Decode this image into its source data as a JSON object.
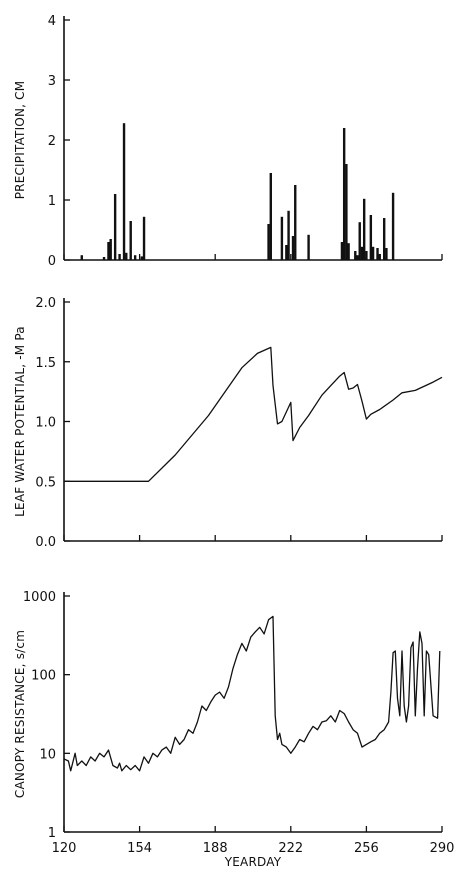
{
  "chart_data": [
    {
      "type": "bar",
      "ylabel": "PRECIPITATION, CM",
      "xlim": [
        120,
        290
      ],
      "ylim": [
        0,
        4
      ],
      "yticks": [
        0,
        1,
        2,
        3,
        4
      ],
      "ytick_labels": [
        "0",
        "1",
        "2",
        "3",
        "4"
      ],
      "xticks": [
        120,
        154,
        188,
        222,
        256,
        290
      ],
      "grid": false,
      "x": [
        128,
        138,
        140,
        141,
        143,
        145,
        147,
        148,
        150,
        152,
        155,
        156,
        212,
        213,
        218,
        220,
        221,
        223,
        224,
        230,
        245,
        246,
        247,
        248,
        251,
        252,
        253,
        254,
        255,
        256,
        258,
        259,
        261,
        262,
        264,
        265,
        268
      ],
      "values": [
        0.08,
        0.05,
        0.3,
        0.35,
        1.1,
        0.1,
        2.28,
        0.12,
        0.65,
        0.08,
        0.06,
        0.72,
        0.6,
        1.45,
        0.72,
        0.25,
        0.82,
        0.4,
        1.25,
        0.42,
        0.3,
        2.2,
        1.6,
        0.28,
        0.15,
        0.08,
        0.63,
        0.22,
        1.02,
        0.15,
        0.75,
        0.22,
        0.2,
        0.1,
        0.7,
        0.2,
        1.12
      ]
    },
    {
      "type": "line",
      "ylabel": "LEAF WATER POTENTIAL, -M Pa",
      "xlim": [
        120,
        290
      ],
      "ylim": [
        0.0,
        2.0
      ],
      "yticks": [
        0.0,
        0.5,
        1.0,
        1.5,
        2.0
      ],
      "ytick_labels": [
        "0.0",
        "0.5",
        "1.0",
        "1.5",
        "2.0"
      ],
      "xticks": [
        120,
        154,
        188,
        222,
        256,
        290
      ],
      "grid": false,
      "x": [
        120,
        158,
        170,
        185,
        200,
        207,
        213,
        214,
        216,
        218,
        222,
        223,
        226,
        230,
        236,
        240,
        244,
        246,
        248,
        250,
        252,
        254,
        256,
        258,
        262,
        268,
        272,
        278,
        286,
        290
      ],
      "y": [
        0.5,
        0.5,
        0.72,
        1.05,
        1.45,
        1.57,
        1.62,
        1.3,
        0.98,
        1.0,
        1.16,
        0.84,
        0.95,
        1.05,
        1.22,
        1.3,
        1.38,
        1.41,
        1.27,
        1.28,
        1.31,
        1.17,
        1.02,
        1.06,
        1.1,
        1.18,
        1.24,
        1.26,
        1.33,
        1.37
      ]
    },
    {
      "type": "line",
      "ylabel": "CANOPY RESISTANCE, s/cm",
      "xlabel": "YEARDAY",
      "yscale": "log",
      "xlim": [
        120,
        290
      ],
      "ylim": [
        1,
        1000
      ],
      "yticks": [
        1,
        10,
        100,
        1000
      ],
      "ytick_labels": [
        "1",
        "10",
        "100",
        "1000"
      ],
      "xticks": [
        120,
        154,
        188,
        222,
        256,
        290
      ],
      "xtick_labels": [
        "120",
        "154",
        "188",
        "222",
        "256",
        "290"
      ],
      "grid": false,
      "x": [
        120,
        122,
        123,
        125,
        126,
        128,
        130,
        132,
        134,
        136,
        138,
        140,
        142,
        144,
        145,
        146,
        148,
        150,
        152,
        154,
        156,
        158,
        160,
        162,
        164,
        166,
        168,
        170,
        172,
        174,
        176,
        178,
        180,
        182,
        184,
        186,
        188,
        190,
        192,
        194,
        196,
        198,
        200,
        202,
        204,
        206,
        208,
        210,
        212,
        214,
        215,
        216,
        217,
        218,
        220,
        222,
        224,
        226,
        228,
        230,
        232,
        234,
        236,
        238,
        240,
        242,
        244,
        246,
        248,
        250,
        252,
        254,
        256,
        258,
        260,
        262,
        264,
        266,
        267,
        268,
        269,
        270,
        271,
        272,
        273,
        274,
        275,
        276,
        277,
        278,
        279,
        280,
        281,
        282,
        283,
        284,
        286,
        288,
        289
      ],
      "y": [
        8.5,
        8,
        6,
        10,
        7,
        8,
        7,
        9,
        8,
        10,
        9,
        11,
        7,
        6.5,
        7.5,
        6,
        7,
        6.2,
        7,
        6,
        9,
        7.5,
        10,
        9,
        11,
        12,
        10,
        16,
        13,
        15,
        20,
        18,
        25,
        40,
        35,
        45,
        55,
        60,
        50,
        70,
        120,
        180,
        250,
        200,
        300,
        350,
        400,
        330,
        500,
        550,
        30,
        15,
        18,
        13,
        12,
        10,
        12,
        15,
        14,
        18,
        22,
        20,
        25,
        26,
        30,
        25,
        35,
        32,
        25,
        20,
        18,
        12,
        13,
        14,
        15,
        18,
        20,
        25,
        60,
        190,
        200,
        50,
        30,
        200,
        40,
        25,
        40,
        220,
        260,
        30,
        120,
        350,
        250,
        30,
        200,
        180,
        30,
        28,
        200
      ]
    }
  ]
}
